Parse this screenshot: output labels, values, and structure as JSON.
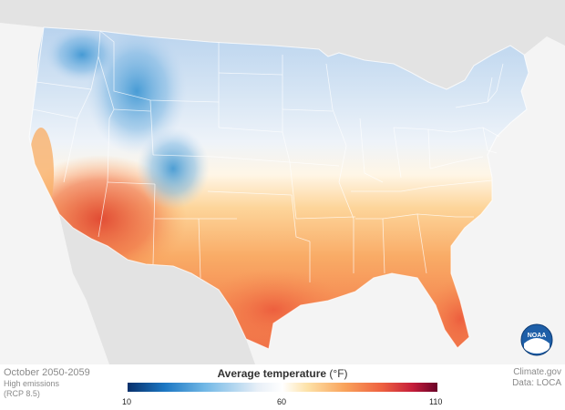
{
  "map": {
    "period": "October 2050-2059",
    "scenario_line1": "High emissions",
    "scenario_line2": "(RCP 8.5)",
    "legend_title": "Average temperature",
    "legend_unit": "(°F)",
    "legend_ticks": [
      "10",
      "60",
      "110"
    ],
    "legend_range": [
      10,
      110
    ],
    "legend_colors": [
      "#08306b",
      "#1c77c3",
      "#72b8e6",
      "#ffffff",
      "#fde2a8",
      "#f9a35b",
      "#ee6140",
      "#c51d3a",
      "#6a0228"
    ],
    "credit": "Climate.gov",
    "data_source": "Data: LOCA",
    "logo_text": "NOAA"
  }
}
